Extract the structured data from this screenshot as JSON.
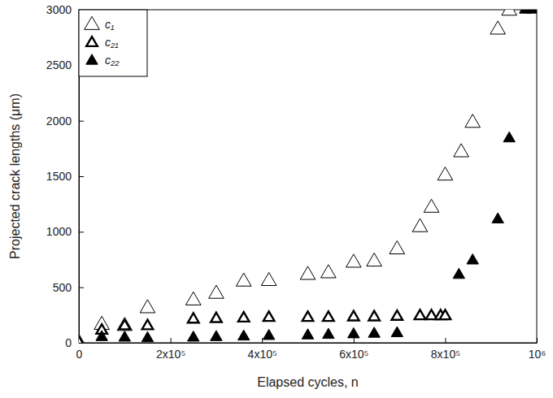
{
  "chart_data": {
    "type": "scatter",
    "x_label": "Elapsed cycles, n",
    "y_label": "Projected crack lengths (μm)",
    "xlim": [
      0,
      1000000
    ],
    "ylim": [
      0,
      3000
    ],
    "xticks": [
      0,
      {
        "value": 200000,
        "label": "2x10⁵"
      },
      {
        "value": 400000,
        "label": "4x10⁵"
      },
      {
        "value": 600000,
        "label": "6x10⁵"
      },
      {
        "value": 800000,
        "label": "8x10⁵"
      },
      {
        "value": 1000000,
        "label": "10⁶"
      }
    ],
    "yticks": [
      0,
      500,
      1000,
      1500,
      2000,
      2500,
      3000
    ],
    "grid": false,
    "legend": "upper left",
    "series": [
      {
        "name": "c₁",
        "color": "#000000",
        "marker": "triangle-open",
        "x": [
          0,
          50000,
          100000,
          150000,
          250000,
          300000,
          360000,
          415000,
          500000,
          545000,
          600000,
          645000,
          695000,
          745000,
          770000,
          800000,
          835000,
          860000,
          915000,
          940000
        ],
        "values": [
          0,
          160,
          150,
          310,
          380,
          440,
          550,
          555,
          610,
          625,
          720,
          730,
          840,
          1040,
          1215,
          1505,
          1715,
          1980,
          2820,
          2990
        ]
      },
      {
        "name": "c₂₁",
        "color": "#000000",
        "marker": "triangle-thick-open",
        "x": [
          0,
          50000,
          100000,
          150000,
          250000,
          300000,
          360000,
          415000,
          500000,
          545000,
          600000,
          645000,
          695000,
          745000,
          770000,
          790000,
          800000
        ],
        "values": [
          0,
          110,
          150,
          150,
          210,
          215,
          220,
          225,
          225,
          225,
          230,
          230,
          235,
          240,
          240,
          240,
          240
        ]
      },
      {
        "name": "c₂₂",
        "color": "#000000",
        "marker": "triangle-filled",
        "x": [
          50000,
          100000,
          150000,
          250000,
          300000,
          360000,
          415000,
          500000,
          545000,
          600000,
          645000,
          695000,
          830000,
          860000,
          915000,
          940000,
          975000,
          990000
        ],
        "values": [
          50,
          45,
          40,
          45,
          50,
          55,
          60,
          65,
          70,
          75,
          80,
          85,
          610,
          740,
          1110,
          1840,
          3000,
          3000
        ]
      }
    ]
  }
}
